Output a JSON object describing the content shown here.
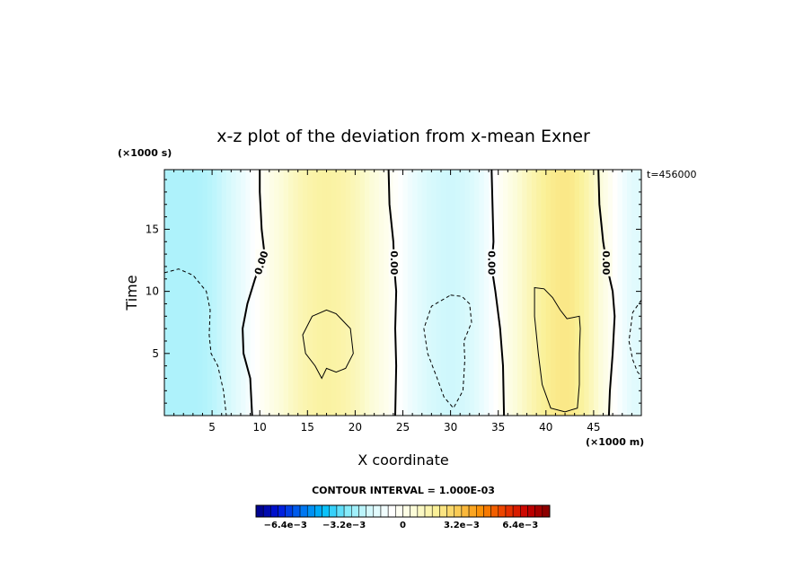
{
  "chart_data": {
    "type": "heatmap",
    "title": "x-z plot of the deviation from x-mean Exner",
    "xlabel": "X coordinate",
    "ylabel": "Time",
    "x_unit": "(×1000 m)",
    "y_unit": "(×1000 s)",
    "time_label": "t=456000",
    "xlim": [
      0,
      50
    ],
    "ylim": [
      0,
      19.8
    ],
    "x_ticks": [
      5,
      10,
      15,
      20,
      25,
      30,
      35,
      40,
      45
    ],
    "y_ticks": [
      5,
      10,
      15
    ],
    "zero_contour_labels": [
      "0.00",
      "0.00",
      "0.00",
      "0.00"
    ],
    "contour_interval_text": "CONTOUR INTERVAL = 1.000E-03",
    "colorbar": {
      "range": [
        -0.008,
        0.008
      ],
      "tick_values": [
        -0.0064,
        -0.0032,
        0,
        0.0032,
        0.0064
      ],
      "tick_labels": [
        "−6.4e−3",
        "−3.2e−3",
        "0",
        "3.2e−3",
        "6.4e−3"
      ]
    },
    "field_bands": [
      {
        "x_center": 3,
        "value": -0.0024
      },
      {
        "x_center": 17,
        "value": 0.0016
      },
      {
        "x_center": 30,
        "value": -0.0019
      },
      {
        "x_center": 42,
        "value": 0.0021
      },
      {
        "x_center": 50,
        "value": -0.0015
      }
    ],
    "zero_contours": [
      {
        "points": [
          [
            10,
            19.8
          ],
          [
            10,
            18
          ],
          [
            10.2,
            15
          ],
          [
            10.5,
            13
          ],
          [
            9.5,
            11
          ],
          [
            8.7,
            9
          ],
          [
            8.2,
            7
          ],
          [
            8.3,
            5
          ],
          [
            9,
            3
          ],
          [
            9.2,
            0
          ]
        ]
      },
      {
        "points": [
          [
            23.5,
            19.8
          ],
          [
            23.6,
            17
          ],
          [
            24,
            14
          ],
          [
            24.1,
            12
          ],
          [
            24.3,
            10
          ],
          [
            24.2,
            7
          ],
          [
            24.3,
            4
          ],
          [
            24.2,
            0
          ]
        ]
      },
      {
        "points": [
          [
            34.3,
            19.8
          ],
          [
            34.4,
            17
          ],
          [
            34.5,
            14
          ],
          [
            34.3,
            12
          ],
          [
            34.7,
            10
          ],
          [
            35.2,
            7
          ],
          [
            35.5,
            4
          ],
          [
            35.6,
            0
          ]
        ]
      },
      {
        "points": [
          [
            45.5,
            19.8
          ],
          [
            45.6,
            17
          ],
          [
            46,
            14
          ],
          [
            46.4,
            12
          ],
          [
            47,
            10
          ],
          [
            47.2,
            8
          ],
          [
            47,
            5
          ],
          [
            46.7,
            2
          ],
          [
            46.6,
            0
          ]
        ]
      }
    ],
    "positive_contours": [
      {
        "points": [
          [
            15.5,
            8
          ],
          [
            17,
            8.5
          ],
          [
            18,
            8.2
          ],
          [
            19.5,
            7
          ],
          [
            19.8,
            5
          ],
          [
            19,
            3.8
          ],
          [
            18,
            3.5
          ],
          [
            17,
            3.8
          ],
          [
            16.5,
            3
          ],
          [
            15.8,
            4
          ],
          [
            14.8,
            5
          ],
          [
            14.5,
            6.5
          ]
        ]
      },
      {
        "points": [
          [
            38.8,
            10.3
          ],
          [
            39.8,
            10.2
          ],
          [
            40.7,
            9.5
          ],
          [
            41.5,
            8.5
          ],
          [
            42.2,
            7.8
          ],
          [
            43.5,
            8
          ],
          [
            43.6,
            7
          ],
          [
            43.5,
            5
          ],
          [
            43.5,
            2.5
          ],
          [
            43.3,
            0.6
          ],
          [
            42,
            0.3
          ],
          [
            40.5,
            0.6
          ],
          [
            39.6,
            2.5
          ],
          [
            39.2,
            5
          ],
          [
            38.8,
            8
          ]
        ]
      }
    ],
    "negative_contours": [
      {
        "points": [
          [
            0,
            11.5
          ],
          [
            1.5,
            11.8
          ],
          [
            3,
            11.3
          ],
          [
            4.4,
            10
          ],
          [
            4.8,
            8.5
          ],
          [
            4.7,
            6.5
          ],
          [
            4.9,
            5
          ],
          [
            5.6,
            4
          ],
          [
            6.2,
            2
          ],
          [
            6.5,
            0
          ]
        ]
      },
      {
        "points": [
          [
            30,
            9.7
          ],
          [
            31.2,
            9.6
          ],
          [
            32,
            9
          ],
          [
            32.2,
            7.5
          ],
          [
            31.4,
            6
          ],
          [
            31.5,
            4.5
          ],
          [
            31.3,
            2
          ],
          [
            30.3,
            0.6
          ],
          [
            29.3,
            1.5
          ],
          [
            28.6,
            3
          ],
          [
            27.6,
            5
          ],
          [
            27.2,
            7
          ],
          [
            28,
            8.8
          ]
        ]
      },
      {
        "points": [
          [
            50,
            9.3
          ],
          [
            49.1,
            8.3
          ],
          [
            48.7,
            6
          ],
          [
            49.1,
            4.5
          ],
          [
            49.6,
            3.5
          ],
          [
            50,
            3.2
          ]
        ]
      }
    ]
  }
}
